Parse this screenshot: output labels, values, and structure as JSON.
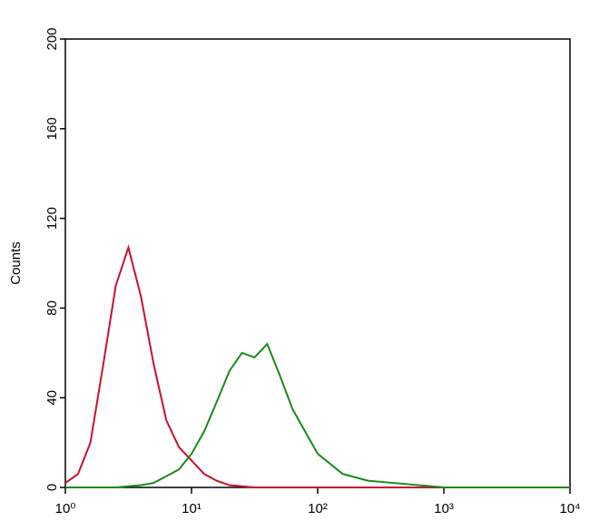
{
  "chart_data": {
    "type": "line",
    "y_label": "Counts",
    "log_x": true,
    "x": [
      1,
      1.26,
      1.58,
      2,
      2.51,
      3.16,
      3.98,
      5.01,
      6.31,
      7.94,
      10,
      12.6,
      15.8,
      20,
      25.1,
      31.6,
      39.8,
      50.1,
      63.1,
      79.4,
      100,
      158,
      251,
      398,
      631,
      1000,
      3162,
      10000
    ],
    "series": [
      {
        "color": "#c8102e",
        "values": [
          2,
          6,
          20,
          55,
          90,
          107,
          85,
          55,
          30,
          18,
          12,
          6,
          3,
          1,
          0.5,
          0,
          0,
          0,
          0,
          0,
          0,
          0,
          0,
          0,
          0,
          0,
          0,
          0
        ]
      },
      {
        "color": "#1a8a1a",
        "values": [
          0,
          0,
          0,
          0,
          0,
          0.5,
          1,
          2,
          5,
          8,
          15,
          25,
          38,
          52,
          60,
          58,
          64,
          50,
          35,
          25,
          15,
          6,
          3,
          2,
          1,
          0,
          0,
          0
        ]
      }
    ],
    "xlim": [
      1,
      10000
    ],
    "xticks": [
      {
        "value": 1,
        "label": "10⁰"
      },
      {
        "value": 10,
        "label": "10¹"
      },
      {
        "value": 100,
        "label": "10²"
      },
      {
        "value": 1000,
        "label": "10³"
      },
      {
        "value": 10000,
        "label": "10⁴"
      }
    ],
    "ylim": [
      0,
      200
    ],
    "yticks": [
      0,
      40,
      80,
      120,
      160,
      200
    ]
  }
}
